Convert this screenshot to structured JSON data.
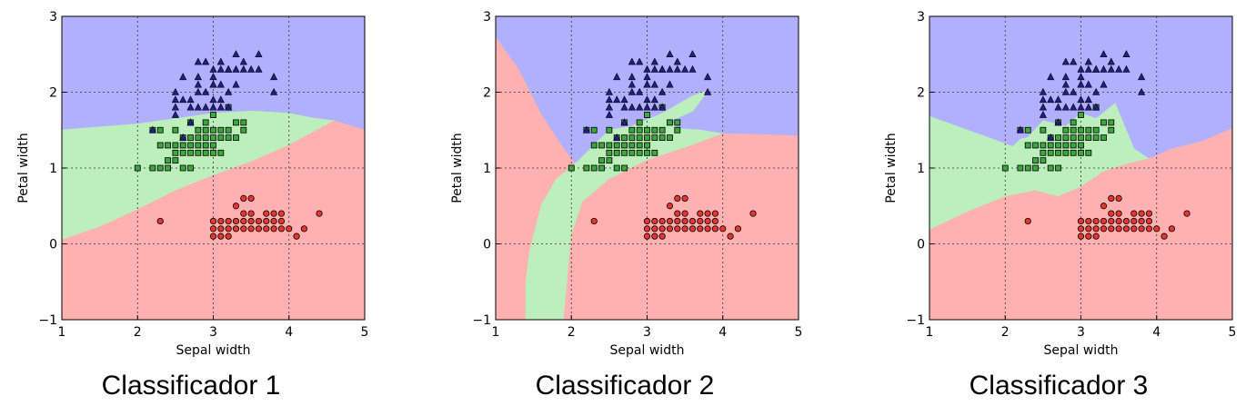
{
  "chart_data": [
    {
      "type": "scatter",
      "title": "",
      "caption": "Classificador 1",
      "xlabel": "Sepal width",
      "ylabel": "Petal width",
      "xlim": [
        1,
        5
      ],
      "ylim": [
        -1,
        3
      ],
      "xticks": [
        "1",
        "2",
        "3",
        "4",
        "5"
      ],
      "yticks": [
        "−1",
        "0",
        "1",
        "2",
        "3"
      ],
      "grid": true,
      "regions": [
        {
          "name": "region-blue",
          "color": "#b0b0ff",
          "points": [
            [
              1,
              3
            ],
            [
              5,
              3
            ],
            [
              5,
              1.5
            ],
            [
              4.5,
              1.62
            ],
            [
              4,
              1.72
            ],
            [
              3.5,
              1.75
            ],
            [
              3,
              1.72
            ],
            [
              2.5,
              1.65
            ],
            [
              2,
              1.58
            ],
            [
              1.5,
              1.54
            ],
            [
              1,
              1.5
            ]
          ]
        },
        {
          "name": "region-green",
          "color": "#bdefbd",
          "points": [
            [
              1,
              1.5
            ],
            [
              1.5,
              1.54
            ],
            [
              2,
              1.58
            ],
            [
              2.5,
              1.65
            ],
            [
              3,
              1.72
            ],
            [
              3.5,
              1.75
            ],
            [
              4,
              1.72
            ],
            [
              4.3,
              1.66
            ],
            [
              4.6,
              1.62
            ],
            [
              4,
              1.3
            ],
            [
              3.5,
              1.08
            ],
            [
              3,
              0.9
            ],
            [
              2.5,
              0.7
            ],
            [
              2,
              0.45
            ],
            [
              1.5,
              0.22
            ],
            [
              1,
              0.05
            ]
          ]
        },
        {
          "name": "region-red",
          "color": "#ffb0b0",
          "points": [
            [
              1,
              0.05
            ],
            [
              1.5,
              0.22
            ],
            [
              2,
              0.45
            ],
            [
              2.5,
              0.7
            ],
            [
              3,
              0.9
            ],
            [
              3.5,
              1.08
            ],
            [
              4,
              1.3
            ],
            [
              4.6,
              1.62
            ],
            [
              5,
              1.5
            ],
            [
              5,
              -1
            ],
            [
              1,
              -1
            ]
          ]
        }
      ]
    },
    {
      "type": "scatter",
      "title": "",
      "caption": "Classificador 2",
      "xlabel": "Sepal width",
      "ylabel": "Petal width",
      "xlim": [
        1,
        5
      ],
      "ylim": [
        -1,
        3
      ],
      "xticks": [
        "1",
        "2",
        "3",
        "4",
        "5"
      ],
      "yticks": [
        "−1",
        "0",
        "1",
        "2",
        "3"
      ],
      "grid": true,
      "regions": [
        {
          "name": "region-blue",
          "color": "#b0b0ff",
          "points": [
            [
              1,
              3
            ],
            [
              5,
              3
            ],
            [
              5,
              1.42
            ],
            [
              4.5,
              1.44
            ],
            [
              4,
              1.45
            ],
            [
              3.7,
              1.5
            ],
            [
              3.4,
              1.45
            ],
            [
              3.2,
              1.35
            ],
            [
              3,
              1.3
            ],
            [
              2.7,
              1.33
            ],
            [
              2.3,
              1.2
            ],
            [
              2,
              1.05
            ],
            [
              1.6,
              1.7
            ],
            [
              1.3,
              2.3
            ],
            [
              1,
              2.72
            ]
          ]
        },
        {
          "name": "region-red-upper",
          "color": "#ffb0b0",
          "points": [
            [
              1,
              2.72
            ],
            [
              1.3,
              2.3
            ],
            [
              1.6,
              1.7
            ],
            [
              1.9,
              1.25
            ],
            [
              2.05,
              1.05
            ],
            [
              1.8,
              0.85
            ],
            [
              1.6,
              0.5
            ],
            [
              1.45,
              -0.1
            ],
            [
              1.4,
              -0.5
            ],
            [
              1.4,
              -1
            ],
            [
              1,
              -1
            ]
          ]
        },
        {
          "name": "region-green",
          "color": "#bdefbd",
          "points": [
            [
              1.4,
              -1
            ],
            [
              1.4,
              -0.5
            ],
            [
              1.45,
              -0.1
            ],
            [
              1.6,
              0.5
            ],
            [
              1.8,
              0.85
            ],
            [
              2.05,
              1.05
            ],
            [
              2.3,
              1.3
            ],
            [
              2.5,
              1.5
            ],
            [
              2.8,
              1.55
            ],
            [
              3.2,
              1.72
            ],
            [
              3.6,
              1.95
            ],
            [
              3.8,
              2.02
            ],
            [
              3.6,
              1.75
            ],
            [
              3.3,
              1.62
            ],
            [
              3.4,
              1.52
            ],
            [
              3.7,
              1.5
            ],
            [
              4,
              1.45
            ],
            [
              3.6,
              1.3
            ],
            [
              3,
              1.1
            ],
            [
              2.5,
              0.85
            ],
            [
              2.15,
              0.55
            ],
            [
              2,
              0.1
            ],
            [
              1.95,
              -0.5
            ],
            [
              1.9,
              -1
            ]
          ]
        },
        {
          "name": "region-red-lower",
          "color": "#ffb0b0",
          "points": [
            [
              1.9,
              -1
            ],
            [
              1.95,
              -0.5
            ],
            [
              2,
              0.1
            ],
            [
              2.15,
              0.55
            ],
            [
              2.5,
              0.85
            ],
            [
              3,
              1.1
            ],
            [
              3.6,
              1.3
            ],
            [
              4,
              1.45
            ],
            [
              4.5,
              1.44
            ],
            [
              5,
              1.42
            ],
            [
              5,
              -1
            ]
          ]
        }
      ]
    },
    {
      "type": "scatter",
      "title": "",
      "caption": "Classificador 3",
      "xlabel": "Sepal width",
      "ylabel": "Petal width",
      "xlim": [
        1,
        5
      ],
      "ylim": [
        -1,
        3
      ],
      "xticks": [
        "1",
        "2",
        "3",
        "4",
        "5"
      ],
      "yticks": [
        "−1",
        "0",
        "1",
        "2",
        "3"
      ],
      "grid": true,
      "regions": [
        {
          "name": "region-blue",
          "color": "#b0b0ff",
          "points": [
            [
              1,
              3
            ],
            [
              5,
              3
            ],
            [
              5,
              1.52
            ],
            [
              4.6,
              1.35
            ],
            [
              4.2,
              1.25
            ],
            [
              3.9,
              1.12
            ],
            [
              3.7,
              1.25
            ],
            [
              3.45,
              1.85
            ],
            [
              3.2,
              1.65
            ],
            [
              3,
              1.72
            ],
            [
              2.8,
              1.55
            ],
            [
              2.5,
              1.62
            ],
            [
              2.3,
              1.4
            ],
            [
              2.2,
              1.38
            ],
            [
              2.1,
              1.28
            ],
            [
              2,
              1.32
            ],
            [
              1.5,
              1.5
            ],
            [
              1,
              1.68
            ]
          ]
        },
        {
          "name": "region-green",
          "color": "#bdefbd",
          "points": [
            [
              1,
              1.68
            ],
            [
              1.5,
              1.5
            ],
            [
              2,
              1.32
            ],
            [
              2.1,
              1.28
            ],
            [
              2.2,
              1.38
            ],
            [
              2.3,
              1.4
            ],
            [
              2.5,
              1.62
            ],
            [
              2.8,
              1.55
            ],
            [
              3,
              1.72
            ],
            [
              3.2,
              1.65
            ],
            [
              3.45,
              1.85
            ],
            [
              3.7,
              1.25
            ],
            [
              3.9,
              1.12
            ],
            [
              3.6,
              1.05
            ],
            [
              3.3,
              0.95
            ],
            [
              3,
              0.75
            ],
            [
              2.7,
              0.62
            ],
            [
              2.4,
              0.7
            ],
            [
              2,
              0.62
            ],
            [
              1.5,
              0.42
            ],
            [
              1,
              0.18
            ]
          ]
        },
        {
          "name": "region-red",
          "color": "#ffb0b0",
          "points": [
            [
              1,
              0.18
            ],
            [
              1.5,
              0.42
            ],
            [
              2,
              0.62
            ],
            [
              2.4,
              0.7
            ],
            [
              2.7,
              0.62
            ],
            [
              3,
              0.75
            ],
            [
              3.3,
              0.95
            ],
            [
              3.6,
              1.05
            ],
            [
              3.9,
              1.12
            ],
            [
              4.2,
              1.25
            ],
            [
              4.6,
              1.35
            ],
            [
              5,
              1.52
            ],
            [
              5,
              -1
            ],
            [
              1,
              -1
            ]
          ]
        }
      ]
    }
  ],
  "points": {
    "setosa": {
      "marker": "circle",
      "color": "#e8352f",
      "xy": [
        [
          2.3,
          0.3
        ],
        [
          3,
          0.1
        ],
        [
          3,
          0.2
        ],
        [
          3.1,
          0.1
        ],
        [
          3.1,
          0.2
        ],
        [
          3.2,
          0.2
        ],
        [
          3.2,
          0.1
        ],
        [
          3.3,
          0.2
        ],
        [
          3.4,
          0.2
        ],
        [
          3.4,
          0.3
        ],
        [
          3.4,
          0.4
        ],
        [
          3.5,
          0.2
        ],
        [
          3.5,
          0.3
        ],
        [
          3.6,
          0.2
        ],
        [
          3.7,
          0.2
        ],
        [
          3.7,
          0.4
        ],
        [
          3.8,
          0.2
        ],
        [
          3.8,
          0.3
        ],
        [
          3.9,
          0.4
        ],
        [
          3.9,
          0.2
        ],
        [
          4.1,
          0.1
        ],
        [
          4.2,
          0.2
        ],
        [
          4.4,
          0.4
        ],
        [
          3,
          0.3
        ],
        [
          3.2,
          0.3
        ],
        [
          3.3,
          0.5
        ],
        [
          3.4,
          0.6
        ],
        [
          3.5,
          0.6
        ],
        [
          3.6,
          0.3
        ],
        [
          3.8,
          0.4
        ],
        [
          4,
          0.2
        ],
        [
          3.3,
          0.3
        ],
        [
          3.5,
          0.4
        ],
        [
          3.1,
          0.3
        ],
        [
          3.7,
          0.3
        ],
        [
          3.9,
          0.3
        ]
      ]
    },
    "versicolor": {
      "marker": "square",
      "color": "#3aa83a",
      "xy": [
        [
          2,
          1
        ],
        [
          2.2,
          1
        ],
        [
          2.3,
          1
        ],
        [
          2.4,
          1
        ],
        [
          2.5,
          1.1
        ],
        [
          2.6,
          1.2
        ],
        [
          2.7,
          1
        ],
        [
          2.8,
          1.3
        ],
        [
          2.9,
          1.3
        ],
        [
          3,
          1.4
        ],
        [
          3.1,
          1.5
        ],
        [
          3.2,
          1.5
        ],
        [
          3.3,
          1.6
        ],
        [
          3.4,
          1.6
        ],
        [
          2.2,
          1.5
        ],
        [
          2.3,
          1.3
        ],
        [
          2.4,
          1.1
        ],
        [
          2.5,
          1.3
        ],
        [
          2.6,
          1.4
        ],
        [
          2.7,
          1.4
        ],
        [
          2.8,
          1.5
        ],
        [
          2.9,
          1.5
        ],
        [
          3,
          1.5
        ],
        [
          3.1,
          1.4
        ],
        [
          3.2,
          1.4
        ],
        [
          3,
          1.7
        ],
        [
          2.9,
          1.4
        ],
        [
          2.8,
          1.2
        ],
        [
          2.7,
          1.2
        ],
        [
          2.6,
          1.3
        ],
        [
          2.5,
          1.5
        ],
        [
          2.4,
          1.3
        ],
        [
          2.3,
          1.5
        ],
        [
          2.7,
          1.6
        ],
        [
          3.2,
          1.8
        ],
        [
          3.4,
          1.5
        ],
        [
          2.9,
          1.6
        ],
        [
          3.1,
          1.2
        ],
        [
          3,
          1.3
        ],
        [
          2.8,
          1.4
        ],
        [
          2.6,
          1
        ],
        [
          2.5,
          1.2
        ],
        [
          2.9,
          1.2
        ],
        [
          3,
          1.2
        ],
        [
          3.3,
          1.4
        ],
        [
          2.7,
          1.3
        ]
      ]
    },
    "virginica": {
      "marker": "triangle",
      "color": "#1f1f8c",
      "xy": [
        [
          2.2,
          1.5
        ],
        [
          2.5,
          1.7
        ],
        [
          2.5,
          1.8
        ],
        [
          2.5,
          2
        ],
        [
          2.6,
          1.9
        ],
        [
          2.7,
          1.9
        ],
        [
          2.7,
          1.8
        ],
        [
          2.8,
          2
        ],
        [
          2.8,
          2.2
        ],
        [
          2.8,
          1.8
        ],
        [
          2.8,
          2.1
        ],
        [
          2.9,
          1.8
        ],
        [
          3,
          1.8
        ],
        [
          3,
          2.1
        ],
        [
          3,
          2.3
        ],
        [
          3,
          1.9
        ],
        [
          3,
          2.1
        ],
        [
          3.1,
          2.3
        ],
        [
          3.1,
          2.1
        ],
        [
          3.1,
          2.4
        ],
        [
          3.2,
          2.3
        ],
        [
          3.2,
          2
        ],
        [
          3.2,
          1.8
        ],
        [
          3.3,
          2.5
        ],
        [
          3.3,
          2.1
        ],
        [
          3.4,
          2.3
        ],
        [
          3.4,
          2.4
        ],
        [
          3.6,
          2.5
        ],
        [
          3.8,
          2.2
        ],
        [
          3.8,
          2
        ],
        [
          2.7,
          1.6
        ],
        [
          2.9,
          2
        ],
        [
          3.1,
          1.9
        ],
        [
          3,
          2.2
        ],
        [
          2.6,
          1.4
        ],
        [
          3.2,
          2.3
        ],
        [
          3.3,
          2.3
        ],
        [
          3.6,
          2.3
        ],
        [
          2.9,
          2.4
        ],
        [
          2.8,
          2.4
        ],
        [
          2.6,
          2.2
        ],
        [
          3.5,
          2.3
        ],
        [
          3.1,
          1.8
        ],
        [
          2.5,
          1.9
        ]
      ]
    }
  }
}
